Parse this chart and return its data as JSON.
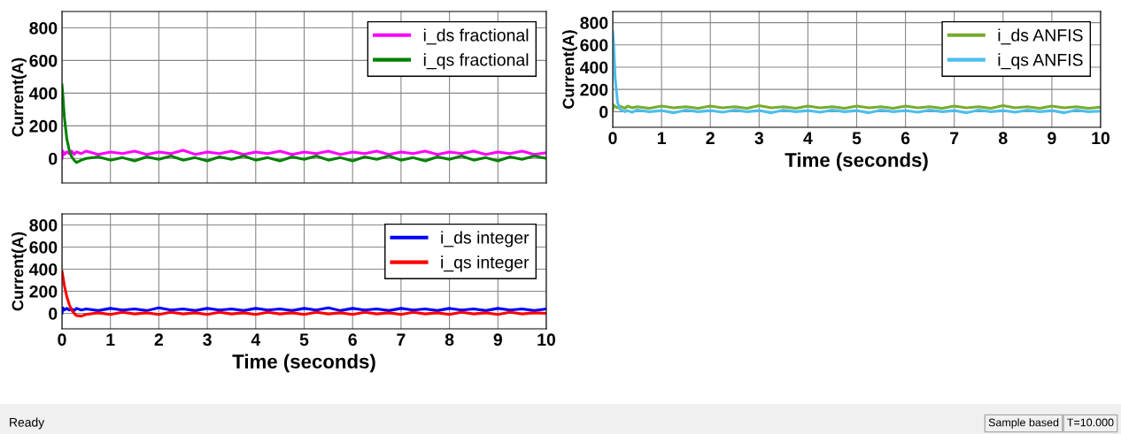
{
  "chart_data": [
    {
      "type": "line",
      "ylabel": "Current(A)",
      "xlim": [
        0,
        10
      ],
      "ylim": [
        -150,
        900
      ],
      "xticks": [
        0,
        1,
        2,
        3,
        4,
        5,
        6,
        7,
        8,
        9,
        10
      ],
      "yticks": [
        0,
        200,
        400,
        600,
        800
      ],
      "tick_labels": "y",
      "grid": true,
      "legend": "top right",
      "x": [
        0,
        0.02,
        0.05,
        0.1,
        0.15,
        0.2,
        0.25,
        0.3,
        0.4,
        0.5,
        0.75,
        1,
        1.25,
        1.5,
        1.75,
        2,
        2.25,
        2.5,
        2.75,
        3,
        3.25,
        3.5,
        3.75,
        4,
        4.25,
        4.5,
        4.75,
        5,
        5.25,
        5.5,
        5.75,
        6,
        6.25,
        6.5,
        6.75,
        7,
        7.25,
        7.5,
        7.75,
        8,
        8.25,
        8.5,
        8.75,
        9,
        9.25,
        9.5,
        9.75,
        10
      ],
      "series": [
        {
          "name": "i_ds fractional",
          "color": "#ff00ff",
          "values": [
            0,
            45,
            25,
            40,
            30,
            45,
            25,
            40,
            30,
            45,
            25,
            40,
            30,
            45,
            25,
            40,
            30,
            50,
            25,
            40,
            30,
            45,
            25,
            40,
            30,
            45,
            25,
            40,
            30,
            45,
            25,
            40,
            30,
            45,
            25,
            40,
            30,
            45,
            25,
            40,
            30,
            45,
            25,
            40,
            30,
            45,
            25,
            35
          ]
        },
        {
          "name": "i_qs fractional",
          "color": "#008000",
          "values": [
            450,
            380,
            250,
            120,
            50,
            10,
            -10,
            -25,
            -10,
            0,
            10,
            -10,
            5,
            -15,
            10,
            -5,
            15,
            -10,
            5,
            -15,
            10,
            -5,
            15,
            -10,
            5,
            -15,
            10,
            -5,
            15,
            -10,
            5,
            -15,
            10,
            -5,
            15,
            -10,
            5,
            -15,
            10,
            -5,
            15,
            -10,
            5,
            -15,
            10,
            -5,
            15,
            0
          ]
        }
      ]
    },
    {
      "type": "line",
      "ylabel": "Current(A)",
      "xlabel": "Time (seconds)",
      "xlim": [
        0,
        10
      ],
      "ylim": [
        -140,
        900
      ],
      "xticks": [
        0,
        1,
        2,
        3,
        4,
        5,
        6,
        7,
        8,
        9,
        10
      ],
      "yticks": [
        0,
        200,
        400,
        600,
        800
      ],
      "grid": true,
      "legend": "top right",
      "x": [
        0,
        0.02,
        0.05,
        0.1,
        0.15,
        0.2,
        0.25,
        0.3,
        0.4,
        0.5,
        0.75,
        1,
        1.25,
        1.5,
        1.75,
        2,
        2.25,
        2.5,
        2.75,
        3,
        3.25,
        3.5,
        3.75,
        4,
        4.25,
        4.5,
        4.75,
        5,
        5.25,
        5.5,
        5.75,
        6,
        6.25,
        6.5,
        6.75,
        7,
        7.25,
        7.5,
        7.75,
        8,
        8.25,
        8.5,
        8.75,
        9,
        9.25,
        9.5,
        9.75,
        10
      ],
      "series": [
        {
          "name": "i_ds ANFIS",
          "color": "#77ac30",
          "values": [
            20,
            60,
            45,
            35,
            50,
            40,
            30,
            50,
            35,
            45,
            30,
            50,
            35,
            45,
            30,
            50,
            35,
            45,
            30,
            55,
            35,
            45,
            30,
            50,
            35,
            45,
            30,
            50,
            35,
            45,
            30,
            50,
            35,
            45,
            30,
            50,
            35,
            45,
            30,
            55,
            35,
            45,
            30,
            50,
            35,
            45,
            30,
            40
          ]
        },
        {
          "name": "i_qs ANFIS",
          "color": "#4dbeee",
          "values": [
            720,
            600,
            300,
            80,
            20,
            10,
            0,
            10,
            -5,
            15,
            0,
            10,
            -10,
            15,
            0,
            10,
            -5,
            15,
            0,
            10,
            -10,
            15,
            0,
            10,
            -5,
            15,
            0,
            10,
            -10,
            15,
            0,
            10,
            -5,
            15,
            0,
            10,
            -10,
            15,
            0,
            10,
            -5,
            15,
            0,
            10,
            -10,
            15,
            0,
            5
          ]
        }
      ]
    },
    {
      "type": "line",
      "ylabel": "Current(A)",
      "xlabel": "Time (seconds)",
      "xlim": [
        0,
        10
      ],
      "ylim": [
        -140,
        900
      ],
      "xticks": [
        0,
        1,
        2,
        3,
        4,
        5,
        6,
        7,
        8,
        9,
        10
      ],
      "yticks": [
        0,
        200,
        400,
        600,
        800
      ],
      "grid": true,
      "legend": "top right",
      "x": [
        0,
        0.02,
        0.05,
        0.1,
        0.15,
        0.2,
        0.25,
        0.3,
        0.4,
        0.5,
        0.75,
        1,
        1.25,
        1.5,
        1.75,
        2,
        2.25,
        2.5,
        2.75,
        3,
        3.25,
        3.5,
        3.75,
        4,
        4.25,
        4.5,
        4.75,
        5,
        5.25,
        5.5,
        5.75,
        6,
        6.25,
        6.5,
        6.75,
        7,
        7.25,
        7.5,
        7.75,
        8,
        8.25,
        8.5,
        8.75,
        9,
        9.25,
        9.5,
        9.75,
        10
      ],
      "series": [
        {
          "name": "i_ds integer",
          "color": "#0000ff",
          "values": [
            0,
            50,
            30,
            45,
            30,
            40,
            25,
            45,
            30,
            40,
            25,
            45,
            30,
            40,
            25,
            50,
            30,
            40,
            25,
            45,
            30,
            40,
            25,
            45,
            30,
            40,
            25,
            45,
            30,
            50,
            25,
            45,
            30,
            40,
            25,
            45,
            30,
            40,
            25,
            45,
            30,
            40,
            25,
            45,
            30,
            40,
            25,
            40
          ]
        },
        {
          "name": "i_qs integer",
          "color": "#ff0000",
          "values": [
            380,
            330,
            250,
            150,
            80,
            30,
            0,
            -20,
            -25,
            -10,
            5,
            -10,
            10,
            -5,
            5,
            -10,
            10,
            -5,
            5,
            -10,
            10,
            -5,
            5,
            -10,
            10,
            -5,
            5,
            -10,
            10,
            -5,
            5,
            -10,
            10,
            -5,
            5,
            -10,
            10,
            -5,
            5,
            -10,
            10,
            -5,
            5,
            -10,
            10,
            -5,
            5,
            0
          ]
        }
      ],
      "annotations": [
        "Ready",
        "Sample based",
        "T=10.000"
      ]
    }
  ]
}
